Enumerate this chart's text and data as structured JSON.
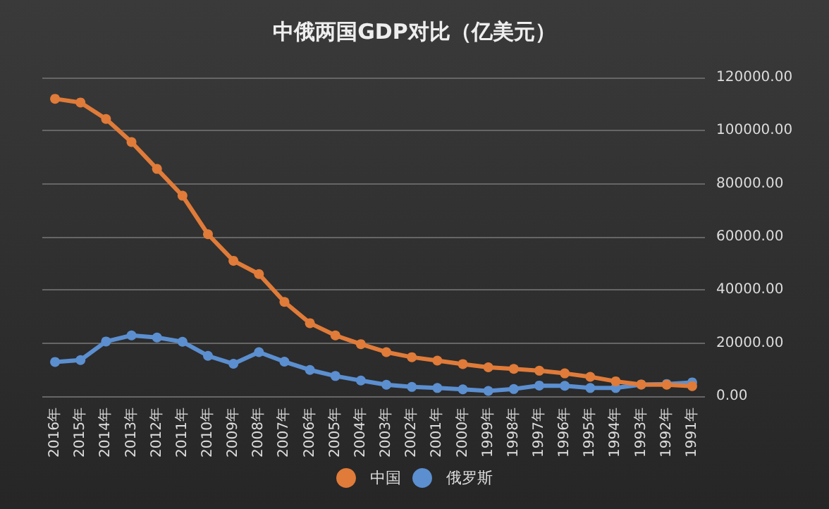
{
  "chart_data": {
    "type": "line",
    "title": "中俄两国GDP对比（亿美元）",
    "categories": [
      "2016年",
      "2015年",
      "2014年",
      "2013年",
      "2012年",
      "2011年",
      "2010年",
      "2009年",
      "2008年",
      "2007年",
      "2006年",
      "2005年",
      "2004年",
      "2003年",
      "2002年",
      "2001年",
      "2000年",
      "1999年",
      "1998年",
      "1997年",
      "1996年",
      "1995年",
      "1994年",
      "1993年",
      "1992年",
      "1991年"
    ],
    "series": [
      {
        "name": "中国",
        "color": "#e07b39",
        "values": [
          112000,
          110600,
          104400,
          95700,
          85600,
          75500,
          61000,
          51000,
          46000,
          35500,
          27500,
          22900,
          19600,
          16600,
          14700,
          13400,
          12100,
          10900,
          10300,
          9600,
          8600,
          7300,
          5600,
          4400,
          4300,
          3800
        ]
      },
      {
        "name": "俄罗斯",
        "color": "#5b8fd0",
        "values": [
          12900,
          13600,
          20600,
          22900,
          22100,
          20500,
          15200,
          12200,
          16600,
          13000,
          9900,
          7600,
          5900,
          4300,
          3500,
          3100,
          2600,
          2000,
          2700,
          4000,
          3900,
          3100,
          3100,
          4400,
          4600,
          5200
        ]
      }
    ],
    "ylim": [
      0,
      120000
    ],
    "yticks": [
      {
        "value": 0,
        "label": "0.00"
      },
      {
        "value": 20000,
        "label": "20000.00"
      },
      {
        "value": 40000,
        "label": "40000.00"
      },
      {
        "value": 60000,
        "label": "60000.00"
      },
      {
        "value": 80000,
        "label": "80000.00"
      },
      {
        "value": 100000,
        "label": "100000.00"
      },
      {
        "value": 120000,
        "label": "120000.00"
      }
    ],
    "grid": "y",
    "legend": "bottom",
    "marker": "circle",
    "line_style": "solid"
  }
}
